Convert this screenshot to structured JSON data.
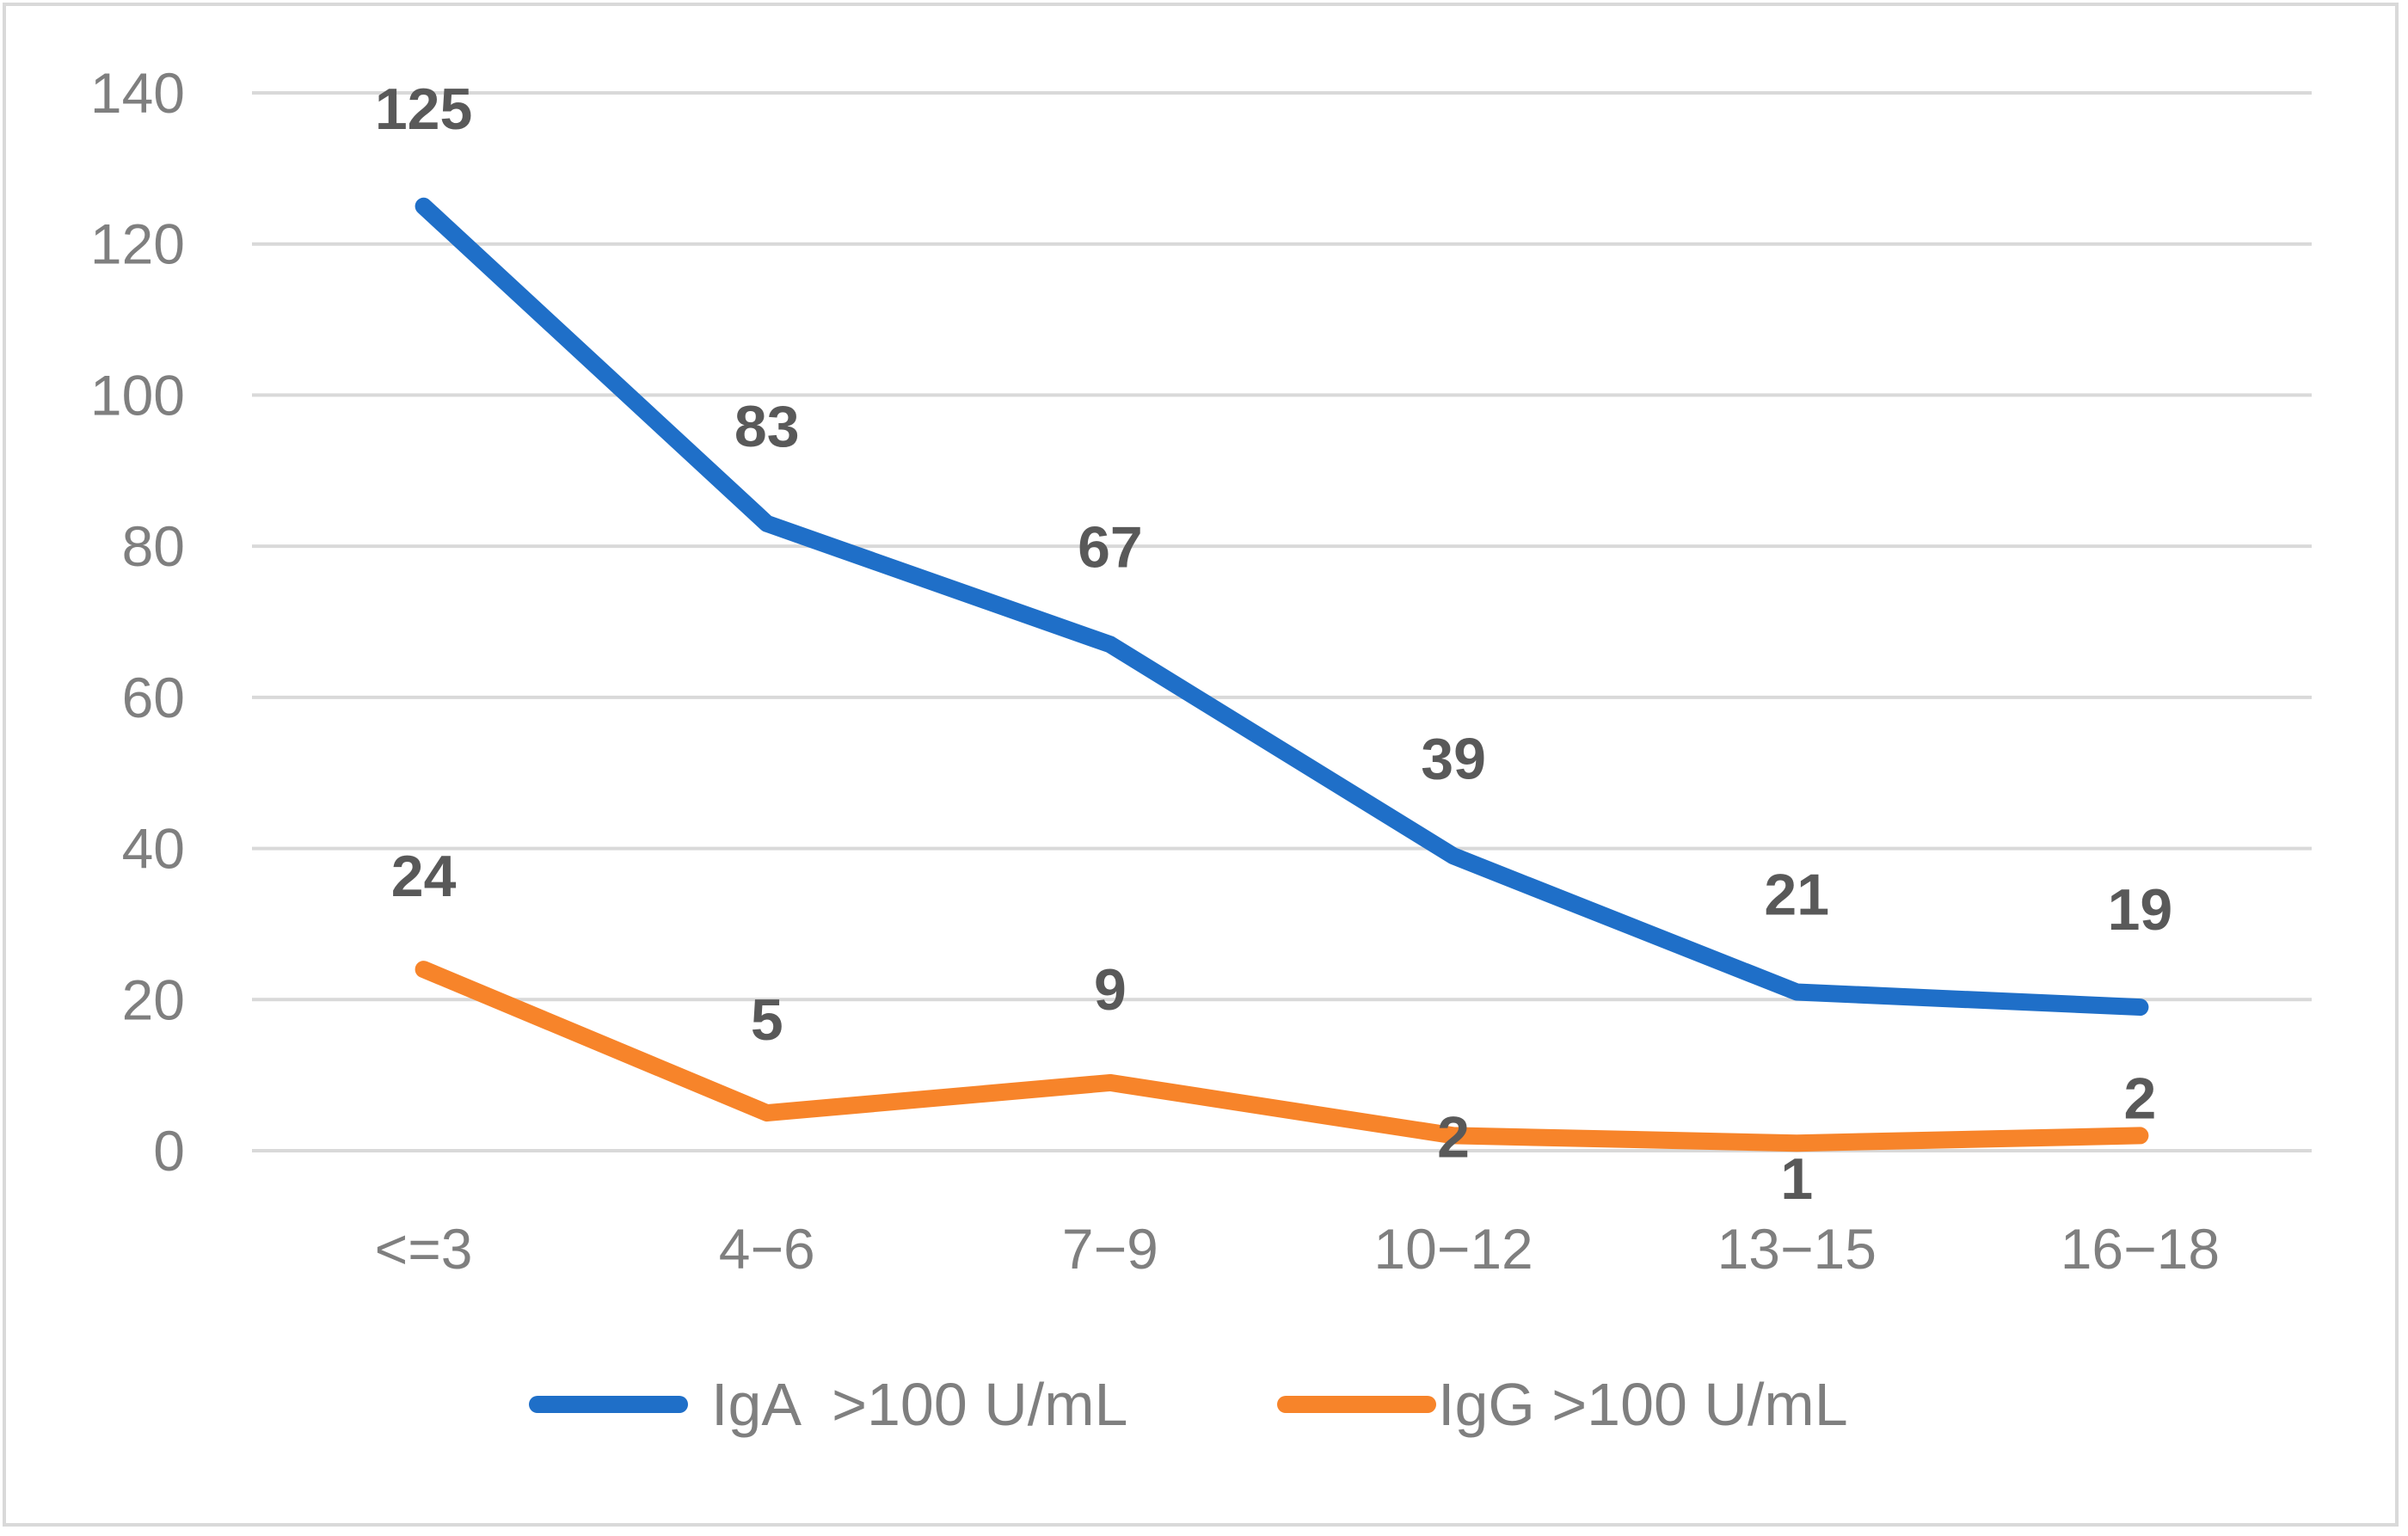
{
  "chart_data": {
    "type": "line",
    "title": "",
    "xlabel": "",
    "ylabel": "",
    "categories": [
      "<=3",
      "4−6",
      "7−9",
      "10−12",
      "13−15",
      "16−18"
    ],
    "ylim": [
      0,
      140
    ],
    "yticks": [
      0,
      20,
      40,
      60,
      80,
      100,
      120,
      140
    ],
    "grid": true,
    "legend_position": "bottom",
    "series": [
      {
        "name": "IgA  >100 U/mL",
        "color": "#1f6fc8",
        "values": [
          125,
          83,
          67,
          39,
          21,
          19
        ]
      },
      {
        "name": "IgG >100 U/mL",
        "color": "#f7842a",
        "values": [
          24,
          5,
          9,
          2,
          1,
          2
        ]
      }
    ]
  }
}
